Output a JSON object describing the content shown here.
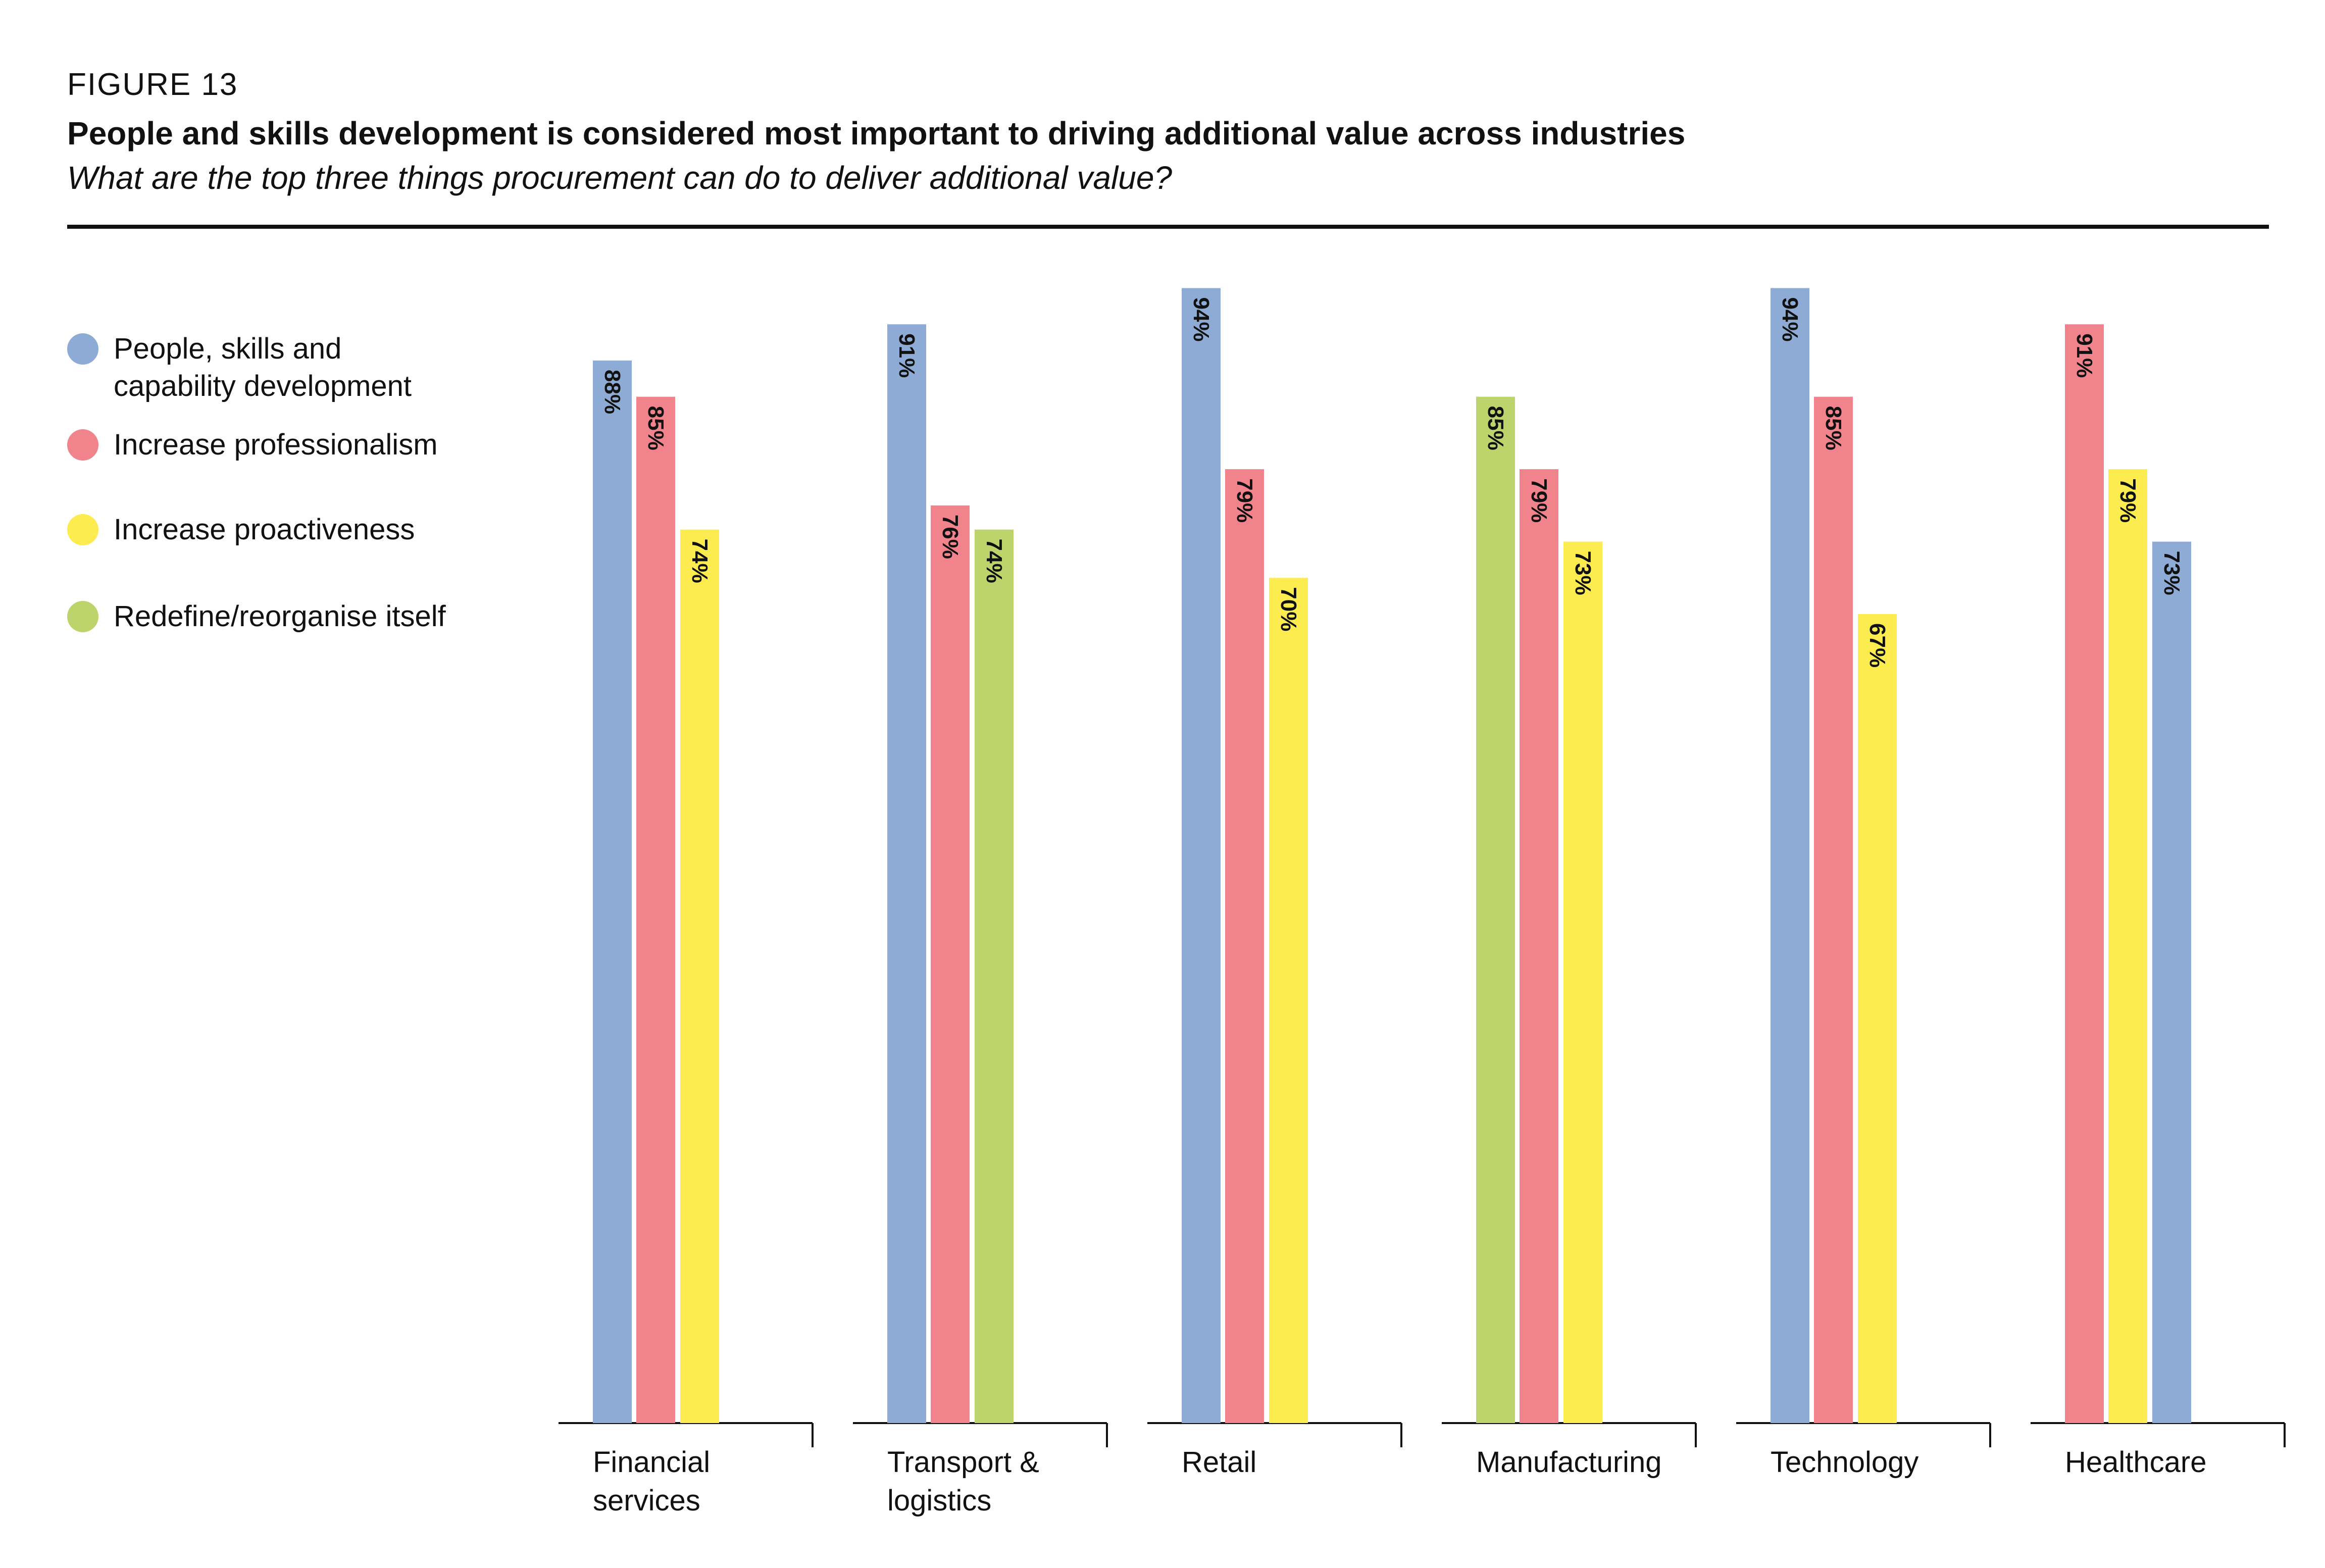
{
  "figure_label": "FIGURE 13",
  "title": "People and skills development is considered most important to driving additional value across industries",
  "subtitle": "What are the top three things procurement can do to deliver additional value?",
  "legend": [
    {
      "label": "People, skills and\ncapability development",
      "color": "#8eabd6"
    },
    {
      "label": "Increase professionalism",
      "color": "#f0838c"
    },
    {
      "label": "Increase proactiveness",
      "color": "#fcec4f"
    },
    {
      "label": "Redefine/reorganise itself",
      "color": "#bdd46c"
    }
  ],
  "chart_data": {
    "type": "bar",
    "ylim": [
      0,
      100
    ],
    "grid": false,
    "legend_position": "left",
    "categories": [
      "Financial\nservices",
      "Transport &\nlogistics",
      "Retail",
      "Manufacturing",
      "Technology",
      "Healthcare"
    ],
    "groups": [
      {
        "category": "Financial\nservices",
        "bars": [
          {
            "series": "People, skills and capability development",
            "value": 88,
            "label": "88%",
            "color": "#8eabd6"
          },
          {
            "series": "Increase professionalism",
            "value": 85,
            "label": "85%",
            "color": "#f0838c"
          },
          {
            "series": "Increase proactiveness",
            "value": 74,
            "label": "74%",
            "color": "#fcec4f"
          }
        ]
      },
      {
        "category": "Transport &\nlogistics",
        "bars": [
          {
            "series": "People, skills and capability development",
            "value": 91,
            "label": "91%",
            "color": "#8eabd6"
          },
          {
            "series": "Increase professionalism",
            "value": 76,
            "label": "76%",
            "color": "#f0838c"
          },
          {
            "series": "Redefine/reorganise itself",
            "value": 74,
            "label": "74%",
            "color": "#bdd46c"
          }
        ]
      },
      {
        "category": "Retail",
        "bars": [
          {
            "series": "People, skills and capability development",
            "value": 94,
            "label": "94%",
            "color": "#8eabd6"
          },
          {
            "series": "Increase professionalism",
            "value": 79,
            "label": "79%",
            "color": "#f0838c"
          },
          {
            "series": "Increase proactiveness",
            "value": 70,
            "label": "70%",
            "color": "#fcec4f"
          }
        ]
      },
      {
        "category": "Manufacturing",
        "bars": [
          {
            "series": "Redefine/reorganise itself",
            "value": 85,
            "label": "85%",
            "color": "#bdd46c"
          },
          {
            "series": "Increase professionalism",
            "value": 79,
            "label": "79%",
            "color": "#f0838c"
          },
          {
            "series": "Increase proactiveness",
            "value": 73,
            "label": "73%",
            "color": "#fcec4f"
          }
        ]
      },
      {
        "category": "Technology",
        "bars": [
          {
            "series": "People, skills and capability development",
            "value": 94,
            "label": "94%",
            "color": "#8eabd6"
          },
          {
            "series": "Increase professionalism",
            "value": 85,
            "label": "85%",
            "color": "#f0838c"
          },
          {
            "series": "Increase proactiveness",
            "value": 67,
            "label": "67%",
            "color": "#fcec4f"
          }
        ]
      },
      {
        "category": "Healthcare",
        "bars": [
          {
            "series": "Increase professionalism",
            "value": 91,
            "label": "91%",
            "color": "#f0838c"
          },
          {
            "series": "Increase proactiveness",
            "value": 79,
            "label": "79%",
            "color": "#fcec4f"
          },
          {
            "series": "People, skills and capability development",
            "value": 73,
            "label": "73%",
            "color": "#8eabd6"
          }
        ]
      }
    ]
  }
}
